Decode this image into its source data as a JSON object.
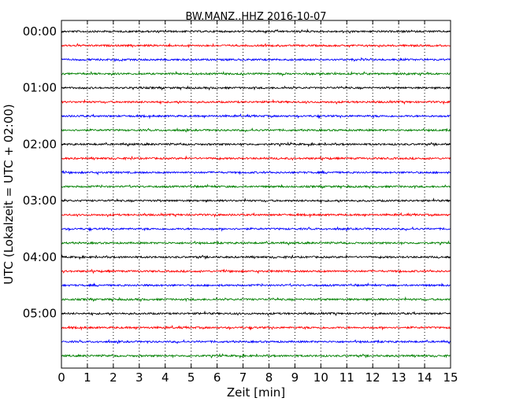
{
  "chart_data": {
    "type": "line",
    "title": "BW.MANZ..HHZ 2016-10-07",
    "xlabel": "Zeit  [min]",
    "ylabel": "UTC (Lokalzeit = UTC + 02:00)",
    "xlim": [
      0,
      15
    ],
    "x_ticks": [
      "0",
      "1",
      "2",
      "3",
      "4",
      "5",
      "6",
      "7",
      "8",
      "9",
      "10",
      "11",
      "12",
      "13",
      "14",
      "15"
    ],
    "y_tick_labels": [
      "00:00",
      "01:00",
      "02:00",
      "03:00",
      "04:00",
      "05:00"
    ],
    "grid": "vertical dotted",
    "trace_colors": [
      "#000000",
      "#ff0000",
      "#0000ff",
      "#008000"
    ],
    "series": [
      {
        "start": "00:00"
      },
      {
        "start": "00:15"
      },
      {
        "start": "00:30"
      },
      {
        "start": "00:45"
      },
      {
        "start": "01:00"
      },
      {
        "start": "01:15"
      },
      {
        "start": "01:30"
      },
      {
        "start": "01:45"
      },
      {
        "start": "02:00"
      },
      {
        "start": "02:15"
      },
      {
        "start": "02:30"
      },
      {
        "start": "02:45"
      },
      {
        "start": "03:00"
      },
      {
        "start": "03:15"
      },
      {
        "start": "03:30"
      },
      {
        "start": "03:45"
      },
      {
        "start": "04:00"
      },
      {
        "start": "04:15"
      },
      {
        "start": "04:30"
      },
      {
        "start": "04:45"
      },
      {
        "start": "05:00"
      },
      {
        "start": "05:15"
      },
      {
        "start": "05:30"
      },
      {
        "start": "05:45"
      }
    ]
  }
}
